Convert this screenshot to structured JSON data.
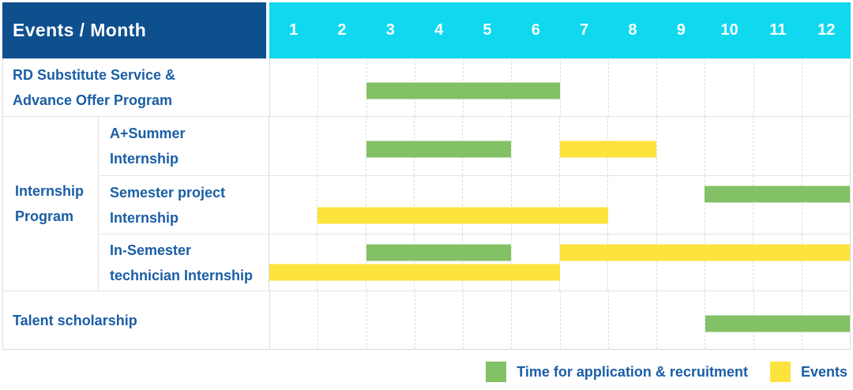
{
  "table": {
    "corner_label": "Events / Month",
    "months": [
      "1",
      "2",
      "3",
      "4",
      "5",
      "6",
      "7",
      "8",
      "9",
      "10",
      "11",
      "12"
    ]
  },
  "group": {
    "label_lines": [
      "Internship",
      "Program"
    ]
  },
  "rows": [
    {
      "name": "rd-substitute-service",
      "label_lines": [
        "RD Substitute Service &",
        "Advance Offer Program"
      ],
      "lines": [
        [
          {
            "type": "application",
            "start": 3,
            "end": 6
          }
        ]
      ]
    },
    {
      "name": "a-plus-summer-internship",
      "label_lines": [
        "A+Summer",
        "Internship"
      ],
      "lines": [
        [
          {
            "type": "application",
            "start": 3,
            "end": 5
          },
          {
            "type": "event",
            "start": 7,
            "end": 8
          }
        ]
      ]
    },
    {
      "name": "semester-project-internship",
      "label_lines": [
        "Semester project",
        "Internship"
      ],
      "lines": [
        [
          {
            "type": "application",
            "start": 10,
            "end": 12
          }
        ],
        [
          {
            "type": "event",
            "start": 2,
            "end": 7
          }
        ]
      ]
    },
    {
      "name": "in-semester-technician-internship",
      "label_lines": [
        "In-Semester",
        "technician Internship"
      ],
      "lines": [
        [
          {
            "type": "application",
            "start": 3,
            "end": 5
          },
          {
            "type": "event",
            "start": 7,
            "end": 12
          }
        ],
        [
          {
            "type": "event",
            "start": 1,
            "end": 6
          }
        ]
      ]
    },
    {
      "name": "talent-scholarship",
      "label_lines": [
        "Talent scholarship"
      ],
      "lines": [
        [
          {
            "type": "application",
            "start": 10,
            "end": 12
          }
        ]
      ]
    }
  ],
  "legend": {
    "items": [
      {
        "label": "Time for application & recruitment",
        "type": "application",
        "color": "#82c166"
      },
      {
        "label": "Events",
        "type": "event",
        "color": "#fde33e"
      }
    ]
  },
  "colors": {
    "header_bg": "#0e4f8e",
    "months_bg": "#0fd8ef",
    "application_bar": "#82c166",
    "event_bar": "#fde33e",
    "text_blue": "#1a5ea6"
  },
  "chart_data": {
    "type": "bar",
    "subtype": "gantt",
    "title": "Events / Month",
    "xlabel": "Month",
    "x_ticks": [
      1,
      2,
      3,
      4,
      5,
      6,
      7,
      8,
      9,
      10,
      11,
      12
    ],
    "x_range": [
      1,
      12
    ],
    "grid": true,
    "rows": [
      {
        "group": "",
        "label": "RD Substitute Service & Advance Offer Program",
        "spans": [
          {
            "series": "Time for application & recruitment",
            "start_month": 3,
            "end_month": 6
          }
        ]
      },
      {
        "group": "Internship Program",
        "label": "A+Summer Internship",
        "spans": [
          {
            "series": "Time for application & recruitment",
            "start_month": 3,
            "end_month": 5
          },
          {
            "series": "Events",
            "start_month": 7,
            "end_month": 8
          }
        ]
      },
      {
        "group": "Internship Program",
        "label": "Semester project Internship",
        "spans": [
          {
            "series": "Time for application & recruitment",
            "start_month": 10,
            "end_month": 12
          },
          {
            "series": "Events",
            "start_month": 2,
            "end_month": 7
          }
        ]
      },
      {
        "group": "Internship Program",
        "label": "In-Semester technician Internship",
        "spans": [
          {
            "series": "Time for application & recruitment",
            "start_month": 3,
            "end_month": 5
          },
          {
            "series": "Events",
            "start_month": 7,
            "end_month": 12
          },
          {
            "series": "Events",
            "start_month": 1,
            "end_month": 6
          }
        ]
      },
      {
        "group": "",
        "label": "Talent scholarship",
        "spans": [
          {
            "series": "Time for application & recruitment",
            "start_month": 10,
            "end_month": 12
          }
        ]
      }
    ],
    "legend": [
      "Time for application & recruitment",
      "Events"
    ],
    "legend_position": "bottom-right"
  }
}
